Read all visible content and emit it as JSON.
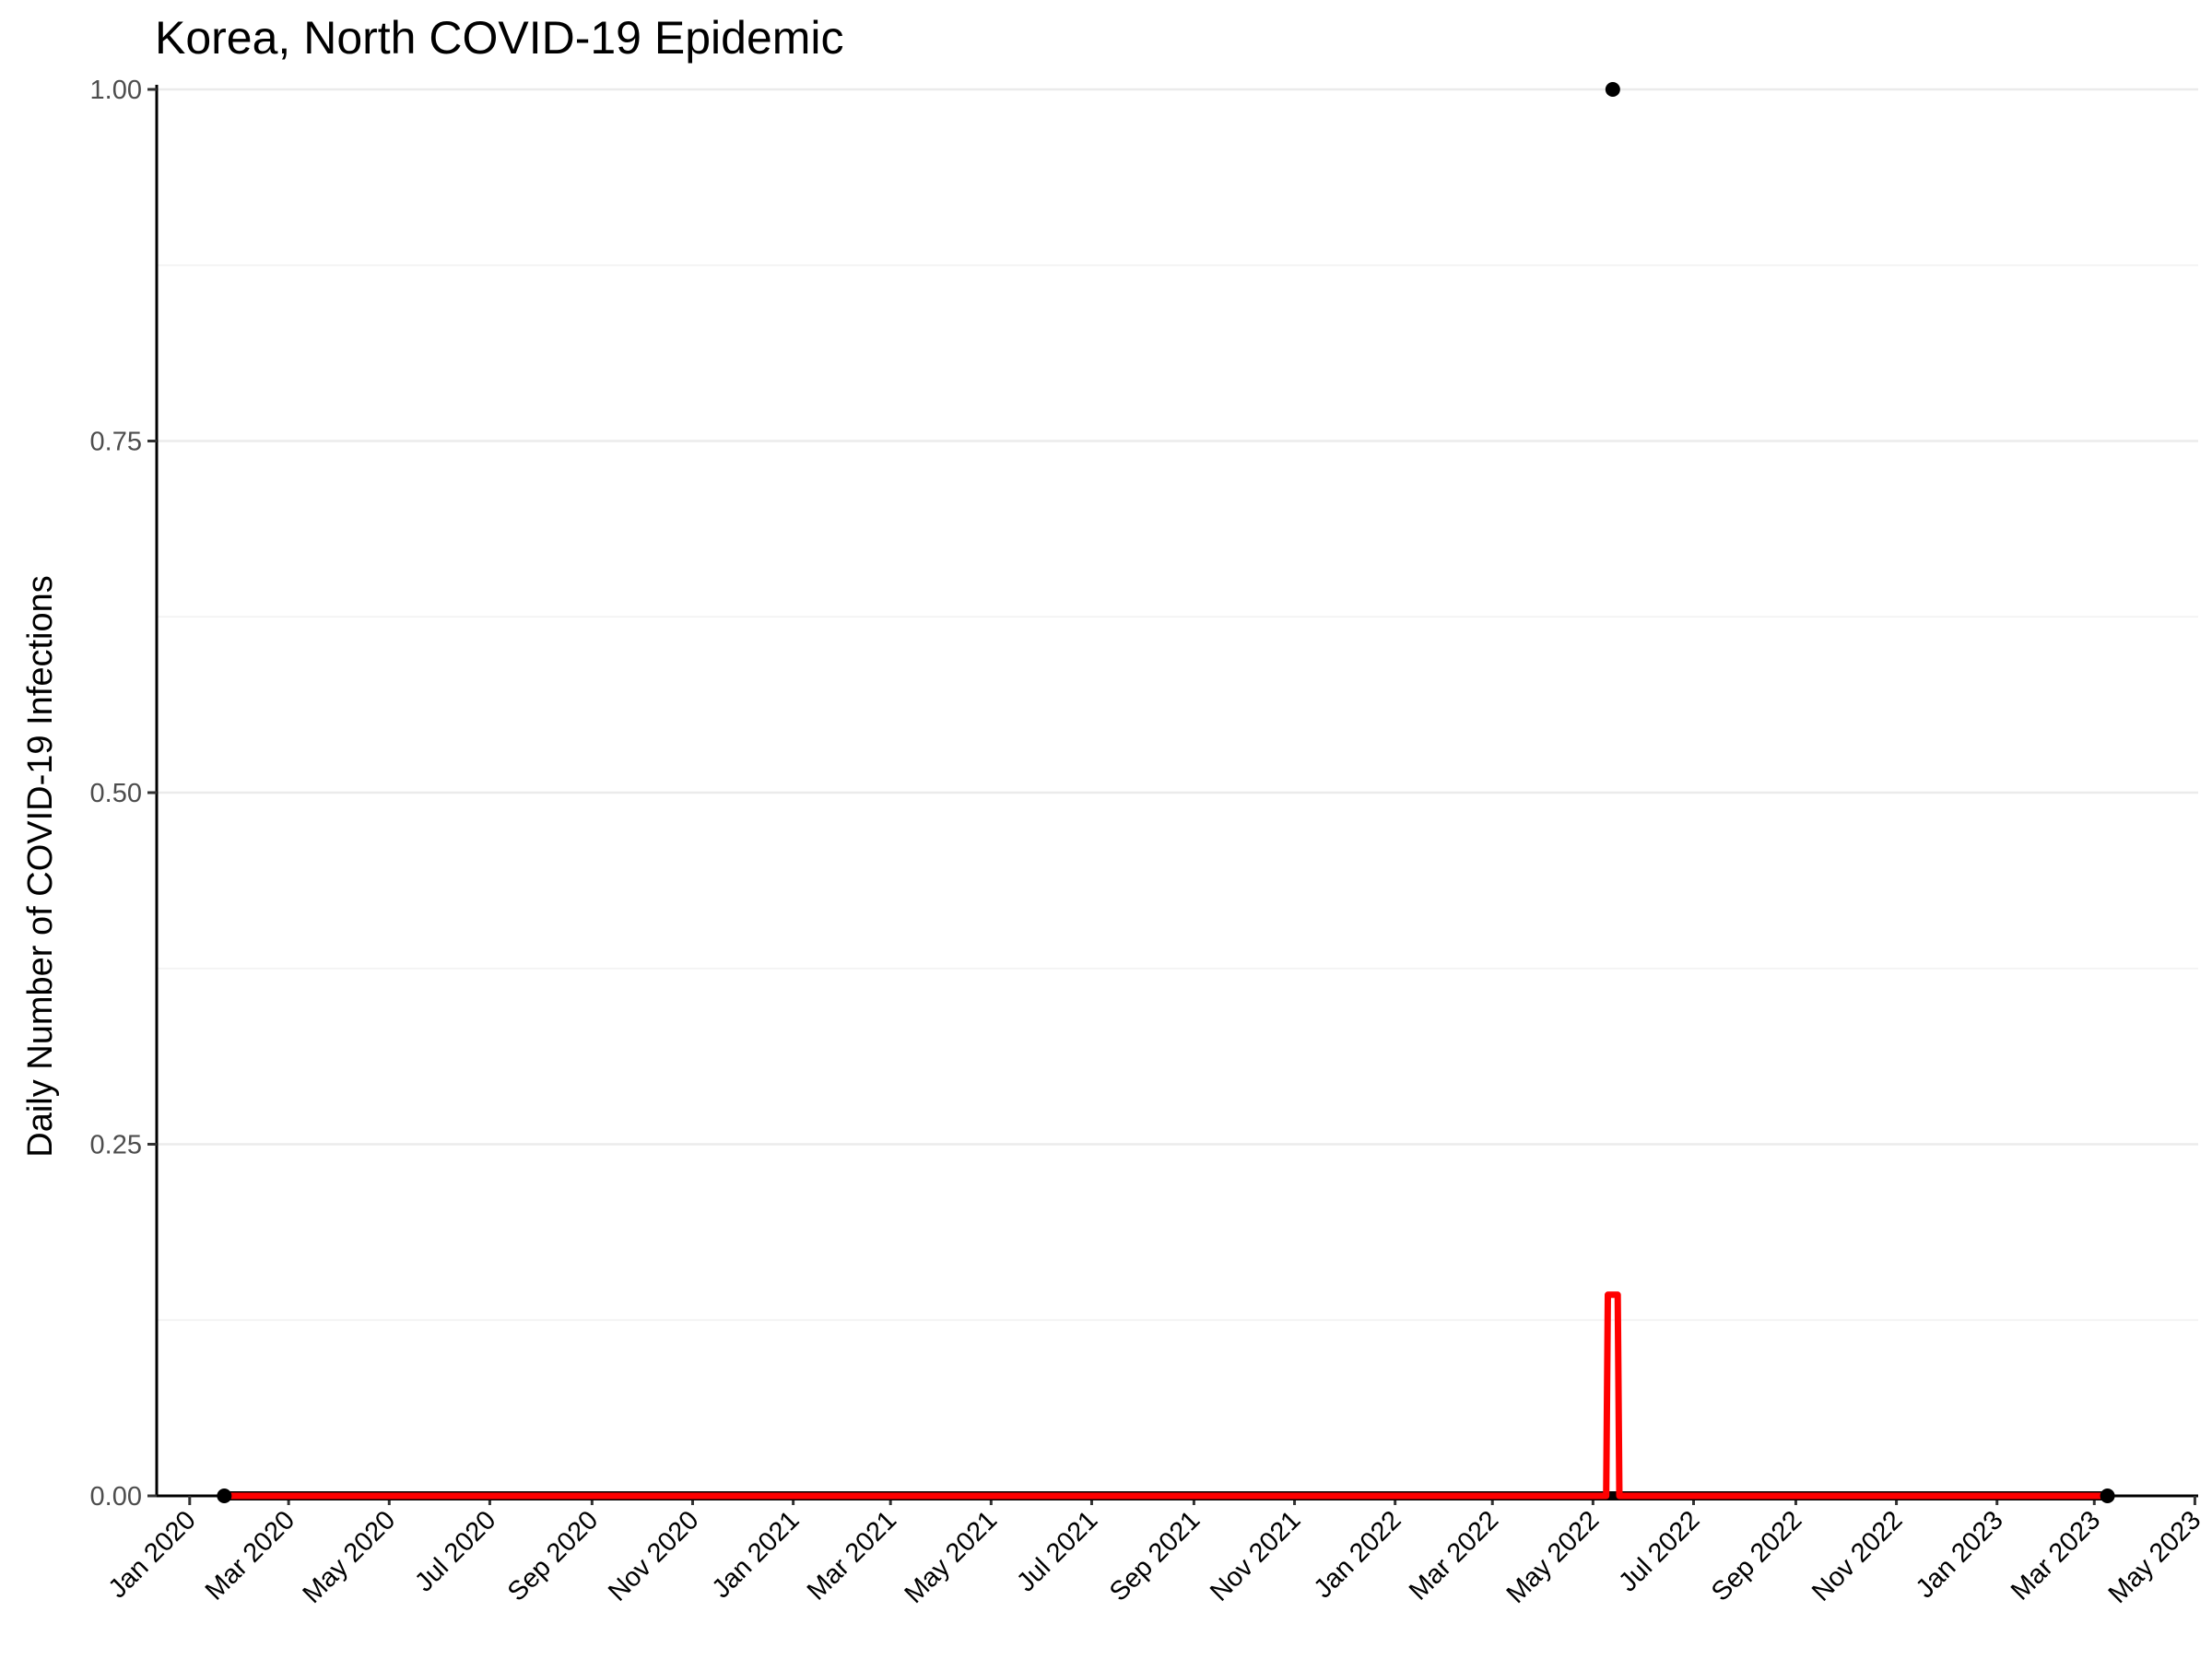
{
  "chart_data": {
    "type": "line",
    "title": "Korea, North COVID-19 Epidemic",
    "xlabel": "",
    "ylabel": "Daily Number of COVID-19 Infections",
    "x_axis_type": "date",
    "xlim": [
      "2019-12-12",
      "2023-05-03"
    ],
    "ylim": [
      0,
      1
    ],
    "y_ticks": [
      0,
      0.25,
      0.5,
      0.75,
      1.0
    ],
    "y_tick_labels": [
      "0.00",
      "0.25",
      "0.50",
      "0.75",
      "1.00"
    ],
    "x_ticks": [
      "2020-01-01",
      "2020-03-01",
      "2020-05-01",
      "2020-07-01",
      "2020-09-01",
      "2020-11-01",
      "2021-01-01",
      "2021-03-01",
      "2021-05-01",
      "2021-07-01",
      "2021-09-01",
      "2021-11-01",
      "2022-01-01",
      "2022-03-01",
      "2022-05-01",
      "2022-07-01",
      "2022-09-01",
      "2022-11-01",
      "2023-01-01",
      "2023-03-01",
      "2023-05-01"
    ],
    "x_tick_labels": [
      "Jan 2020",
      "Mar 2020",
      "May 2020",
      "Jul 2020",
      "Sep 2020",
      "Nov 2020",
      "Jan 2021",
      "Mar 2021",
      "May 2021",
      "Jul 2021",
      "Sep 2021",
      "Nov 2021",
      "Jan 2022",
      "Mar 2022",
      "May 2022",
      "Jul 2022",
      "Sep 2022",
      "Nov 2022",
      "Jan 2023",
      "Mar 2023",
      "May 2023"
    ],
    "grid": "horizontal",
    "series": [
      {
        "kind": "points",
        "color": "#000000",
        "note_values": "daily counts: 0 on all days from 2020-01-22 to 2023-03-09 except one day",
        "points": [
          {
            "x": "2020-01-22",
            "y": 0
          },
          {
            "x": "2022-05-13",
            "y": 1
          },
          {
            "x": "2023-03-09",
            "y": 0
          }
        ]
      },
      {
        "kind": "line",
        "color": "#ff0000",
        "points": [
          {
            "x": "2020-01-22",
            "y": 0
          },
          {
            "x": "2022-05-09",
            "y": 0
          },
          {
            "x": "2022-05-10",
            "y": 0.143
          },
          {
            "x": "2022-05-16",
            "y": 0.143
          },
          {
            "x": "2022-05-17",
            "y": 0
          },
          {
            "x": "2023-03-09",
            "y": 0
          }
        ]
      }
    ]
  }
}
